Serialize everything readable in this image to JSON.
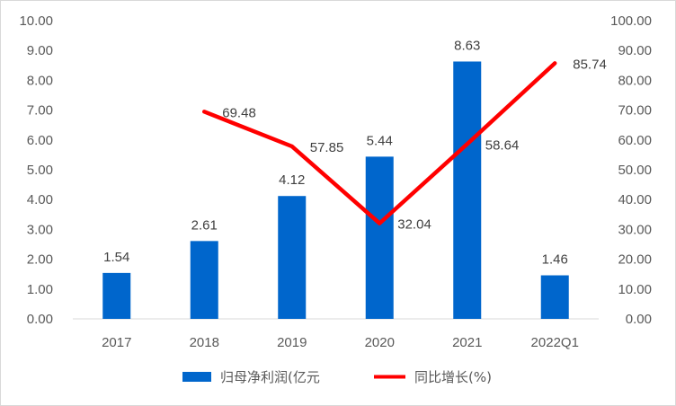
{
  "chart_data": {
    "type": "bar",
    "categories": [
      "2017",
      "2018",
      "2019",
      "2020",
      "2021",
      "2022Q1"
    ],
    "series": [
      {
        "name": "归母净利润(亿元",
        "kind": "bar",
        "axis": "left",
        "color": "#0066CC",
        "values": [
          1.54,
          2.61,
          4.12,
          5.44,
          8.63,
          1.46
        ],
        "labels": [
          "1.54",
          "2.61",
          "4.12",
          "5.44",
          "8.63",
          "1.46"
        ]
      },
      {
        "name": "同比增长(%)",
        "kind": "line",
        "axis": "right",
        "color": "#FF0000",
        "values": [
          null,
          69.48,
          57.85,
          32.04,
          58.64,
          85.74
        ],
        "labels": [
          "",
          "69.48",
          "57.85",
          "32.04",
          "58.64",
          "85.74"
        ]
      }
    ],
    "y_left": {
      "range": [
        0,
        10
      ],
      "ticks": [
        "0.00",
        "1.00",
        "2.00",
        "3.00",
        "4.00",
        "5.00",
        "6.00",
        "7.00",
        "8.00",
        "9.00",
        "10.00"
      ]
    },
    "y_right": {
      "range": [
        0,
        100
      ],
      "ticks": [
        "0.00",
        "10.00",
        "20.00",
        "30.00",
        "40.00",
        "50.00",
        "60.00",
        "70.00",
        "80.00",
        "90.00",
        "100.00"
      ]
    },
    "grid": false,
    "legend": "bottom"
  }
}
